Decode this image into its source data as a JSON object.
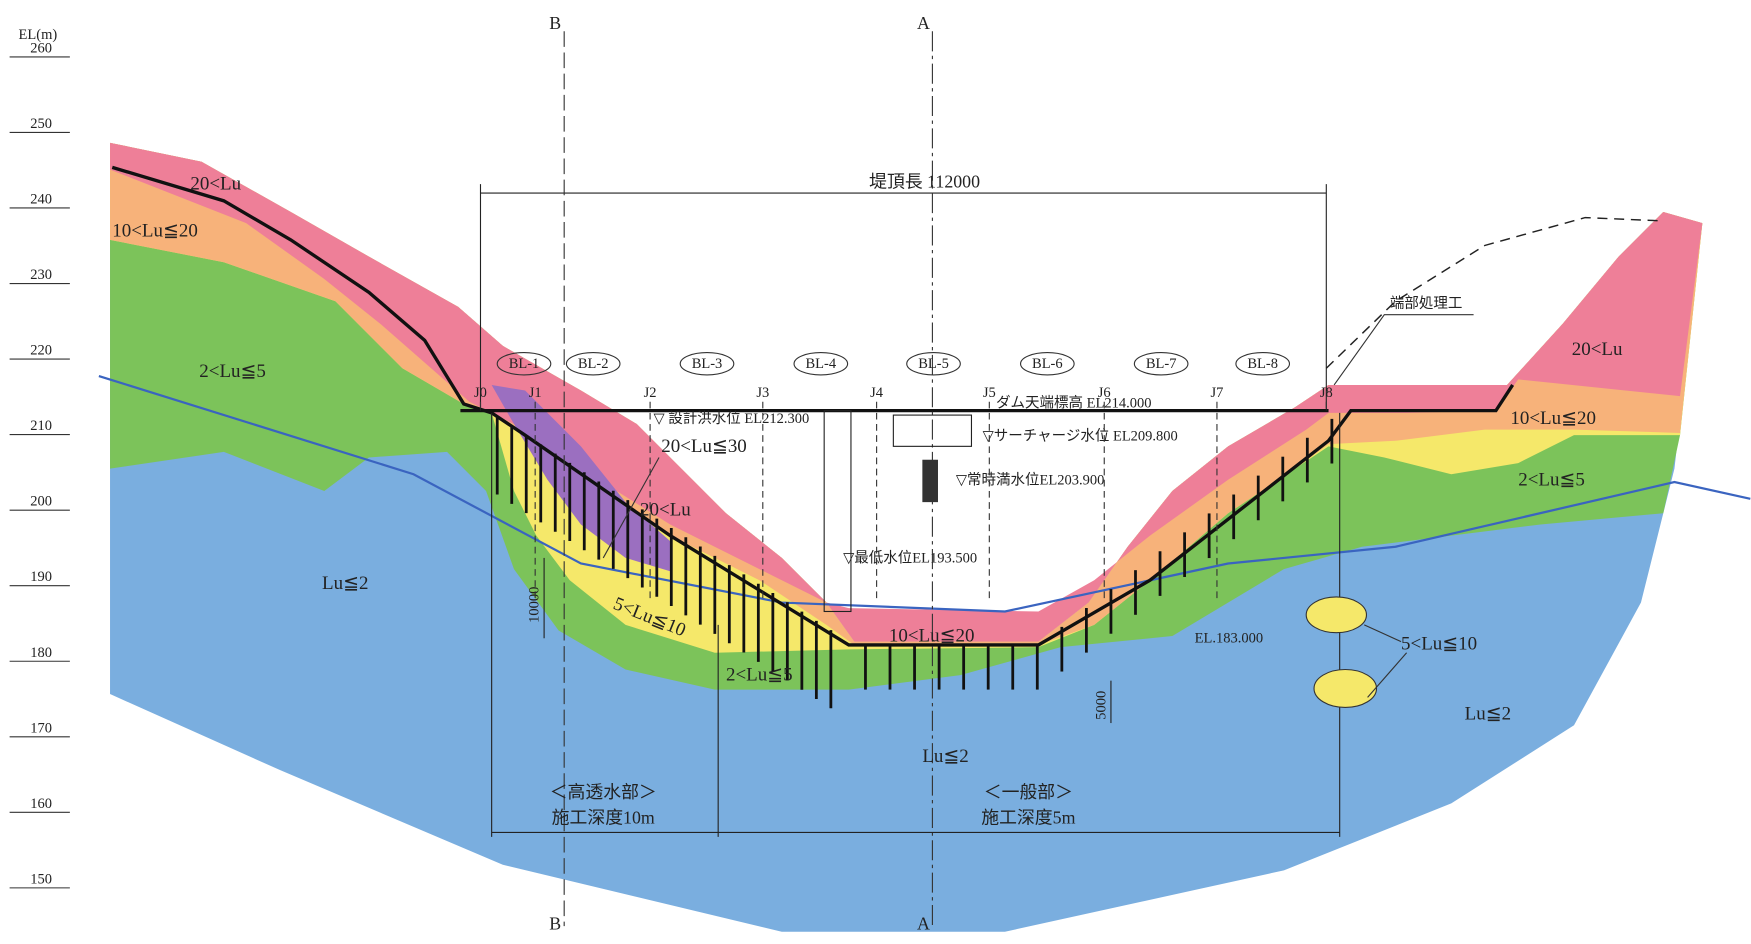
{
  "elevation_axis": {
    "label": "EL(m)",
    "ticks": [
      260,
      250,
      240,
      230,
      220,
      210,
      200,
      190,
      180,
      170,
      160,
      150
    ]
  },
  "section_marks": [
    "B",
    "A"
  ],
  "crest_length": "堤頂長 112000",
  "blocks": [
    "BL-1",
    "BL-2",
    "BL-3",
    "BL-4",
    "BL-5",
    "BL-6",
    "BL-7",
    "BL-8"
  ],
  "joints": [
    "J0",
    "J1",
    "J2",
    "J3",
    "J4",
    "J5",
    "J6",
    "J7",
    "J8"
  ],
  "water_levels": {
    "crest": "ダム天端標高 EL214.000",
    "design_flood": "▽ 設計洪水位 EL212.300",
    "surcharge": "▽サーチャージ水位 EL209.800",
    "normal": "▽常時満水位EL203.900",
    "minimum": "▽最低水位EL193.500",
    "base": "EL.183.000"
  },
  "end_treatment": "端部処理工",
  "zones": [
    "20<Lu",
    "10<Lu≦20",
    "2<Lu≦5",
    "Lu≦2",
    "20<Lu≦30",
    "20<Lu",
    "5<Lu≦10",
    "10<Lu≦20",
    "2<Lu≦5",
    "Lu≦2",
    "20<Lu",
    "10<Lu≦20",
    "2<Lu≦5",
    "5<Lu≦10",
    "Lu≦2"
  ],
  "dimensions": [
    "10000",
    "5000"
  ],
  "grouting": {
    "high_permeability": {
      "title": "＜高透水部＞",
      "depth": "施工深度10m"
    },
    "general": {
      "title": "＜一般部＞",
      "depth": "施工深度5m"
    }
  }
}
